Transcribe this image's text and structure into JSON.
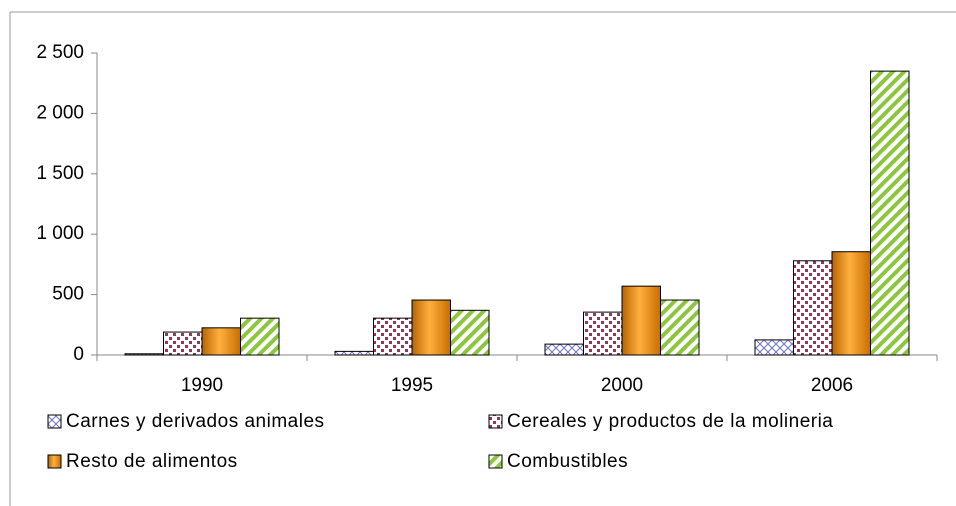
{
  "chart_data": {
    "type": "bar",
    "categories": [
      "1990",
      "1995",
      "2000",
      "2006"
    ],
    "series": [
      {
        "name": "Carnes y derivados animales",
        "color": "#6f74c8",
        "pattern": "checker",
        "values": [
          10,
          30,
          90,
          125
        ]
      },
      {
        "name": "Cereales y productos de la molineria",
        "color": "#a0305a",
        "pattern": "dots",
        "values": [
          190,
          305,
          355,
          780
        ]
      },
      {
        "name": "Resto de alimentos",
        "color": "#f28c00",
        "pattern": "solid",
        "values": [
          225,
          455,
          570,
          855
        ]
      },
      {
        "name": "Combustibles",
        "color": "#8cc63e",
        "pattern": "stripes",
        "values": [
          305,
          370,
          455,
          2350
        ]
      }
    ],
    "ylim": [
      0,
      2500
    ],
    "yticks": [
      0,
      500,
      {
        "value": 1000,
        "label": "1 000"
      },
      {
        "value": 1500,
        "label": "1 500"
      },
      {
        "value": 2000,
        "label": "2 000"
      },
      {
        "value": 2500,
        "label": "2 500"
      }
    ],
    "grid": false
  }
}
